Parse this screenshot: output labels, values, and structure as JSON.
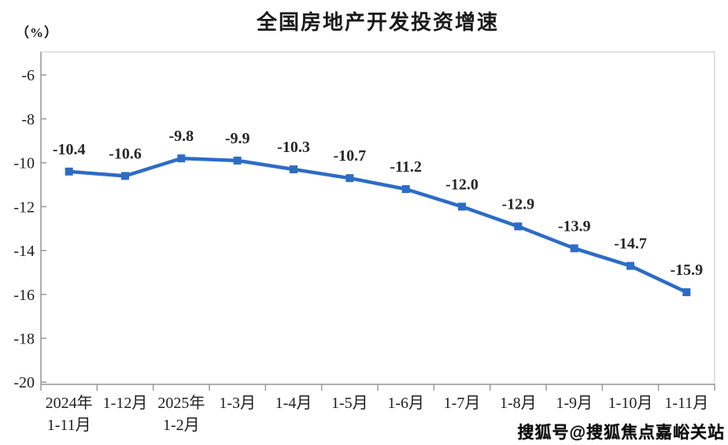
{
  "chart_data": {
    "type": "line",
    "title": "全国房地产开发投资增速",
    "unit_label": "（%）",
    "categories": [
      [
        "2024年",
        "1-11月"
      ],
      [
        "1-12月"
      ],
      [
        "2025年",
        "1-2月"
      ],
      [
        "1-3月"
      ],
      [
        "1-4月"
      ],
      [
        "1-5月"
      ],
      [
        "1-6月"
      ],
      [
        "1-7月"
      ],
      [
        "1-8月"
      ],
      [
        "1-9月"
      ],
      [
        "1-10月"
      ],
      [
        "1-11月"
      ]
    ],
    "values": [
      -10.4,
      -10.6,
      -9.8,
      -9.9,
      -10.3,
      -10.7,
      -11.2,
      -12.0,
      -12.9,
      -13.9,
      -14.7,
      -15.9
    ],
    "data_labels": [
      "-10.4",
      "-10.6",
      "-9.8",
      "-9.9",
      "-10.3",
      "-10.7",
      "-11.2",
      "-12.0",
      "-12.9",
      "-13.9",
      "-14.7",
      "-15.9"
    ],
    "y_ticks": [
      -6,
      -8,
      -10,
      -12,
      -14,
      -16,
      -18,
      -20
    ],
    "y_axis_range": [
      -20.1,
      -4.95
    ],
    "grid": false,
    "legend": null,
    "marker": "square",
    "colors": {
      "series": "#2d6cc4",
      "axis": "#9a9a9a",
      "plot_border": "#d9d9d9",
      "text": "#1f1f1f"
    }
  },
  "watermark": {
    "text": "搜狐号@搜狐焦点嘉峪关站"
  }
}
